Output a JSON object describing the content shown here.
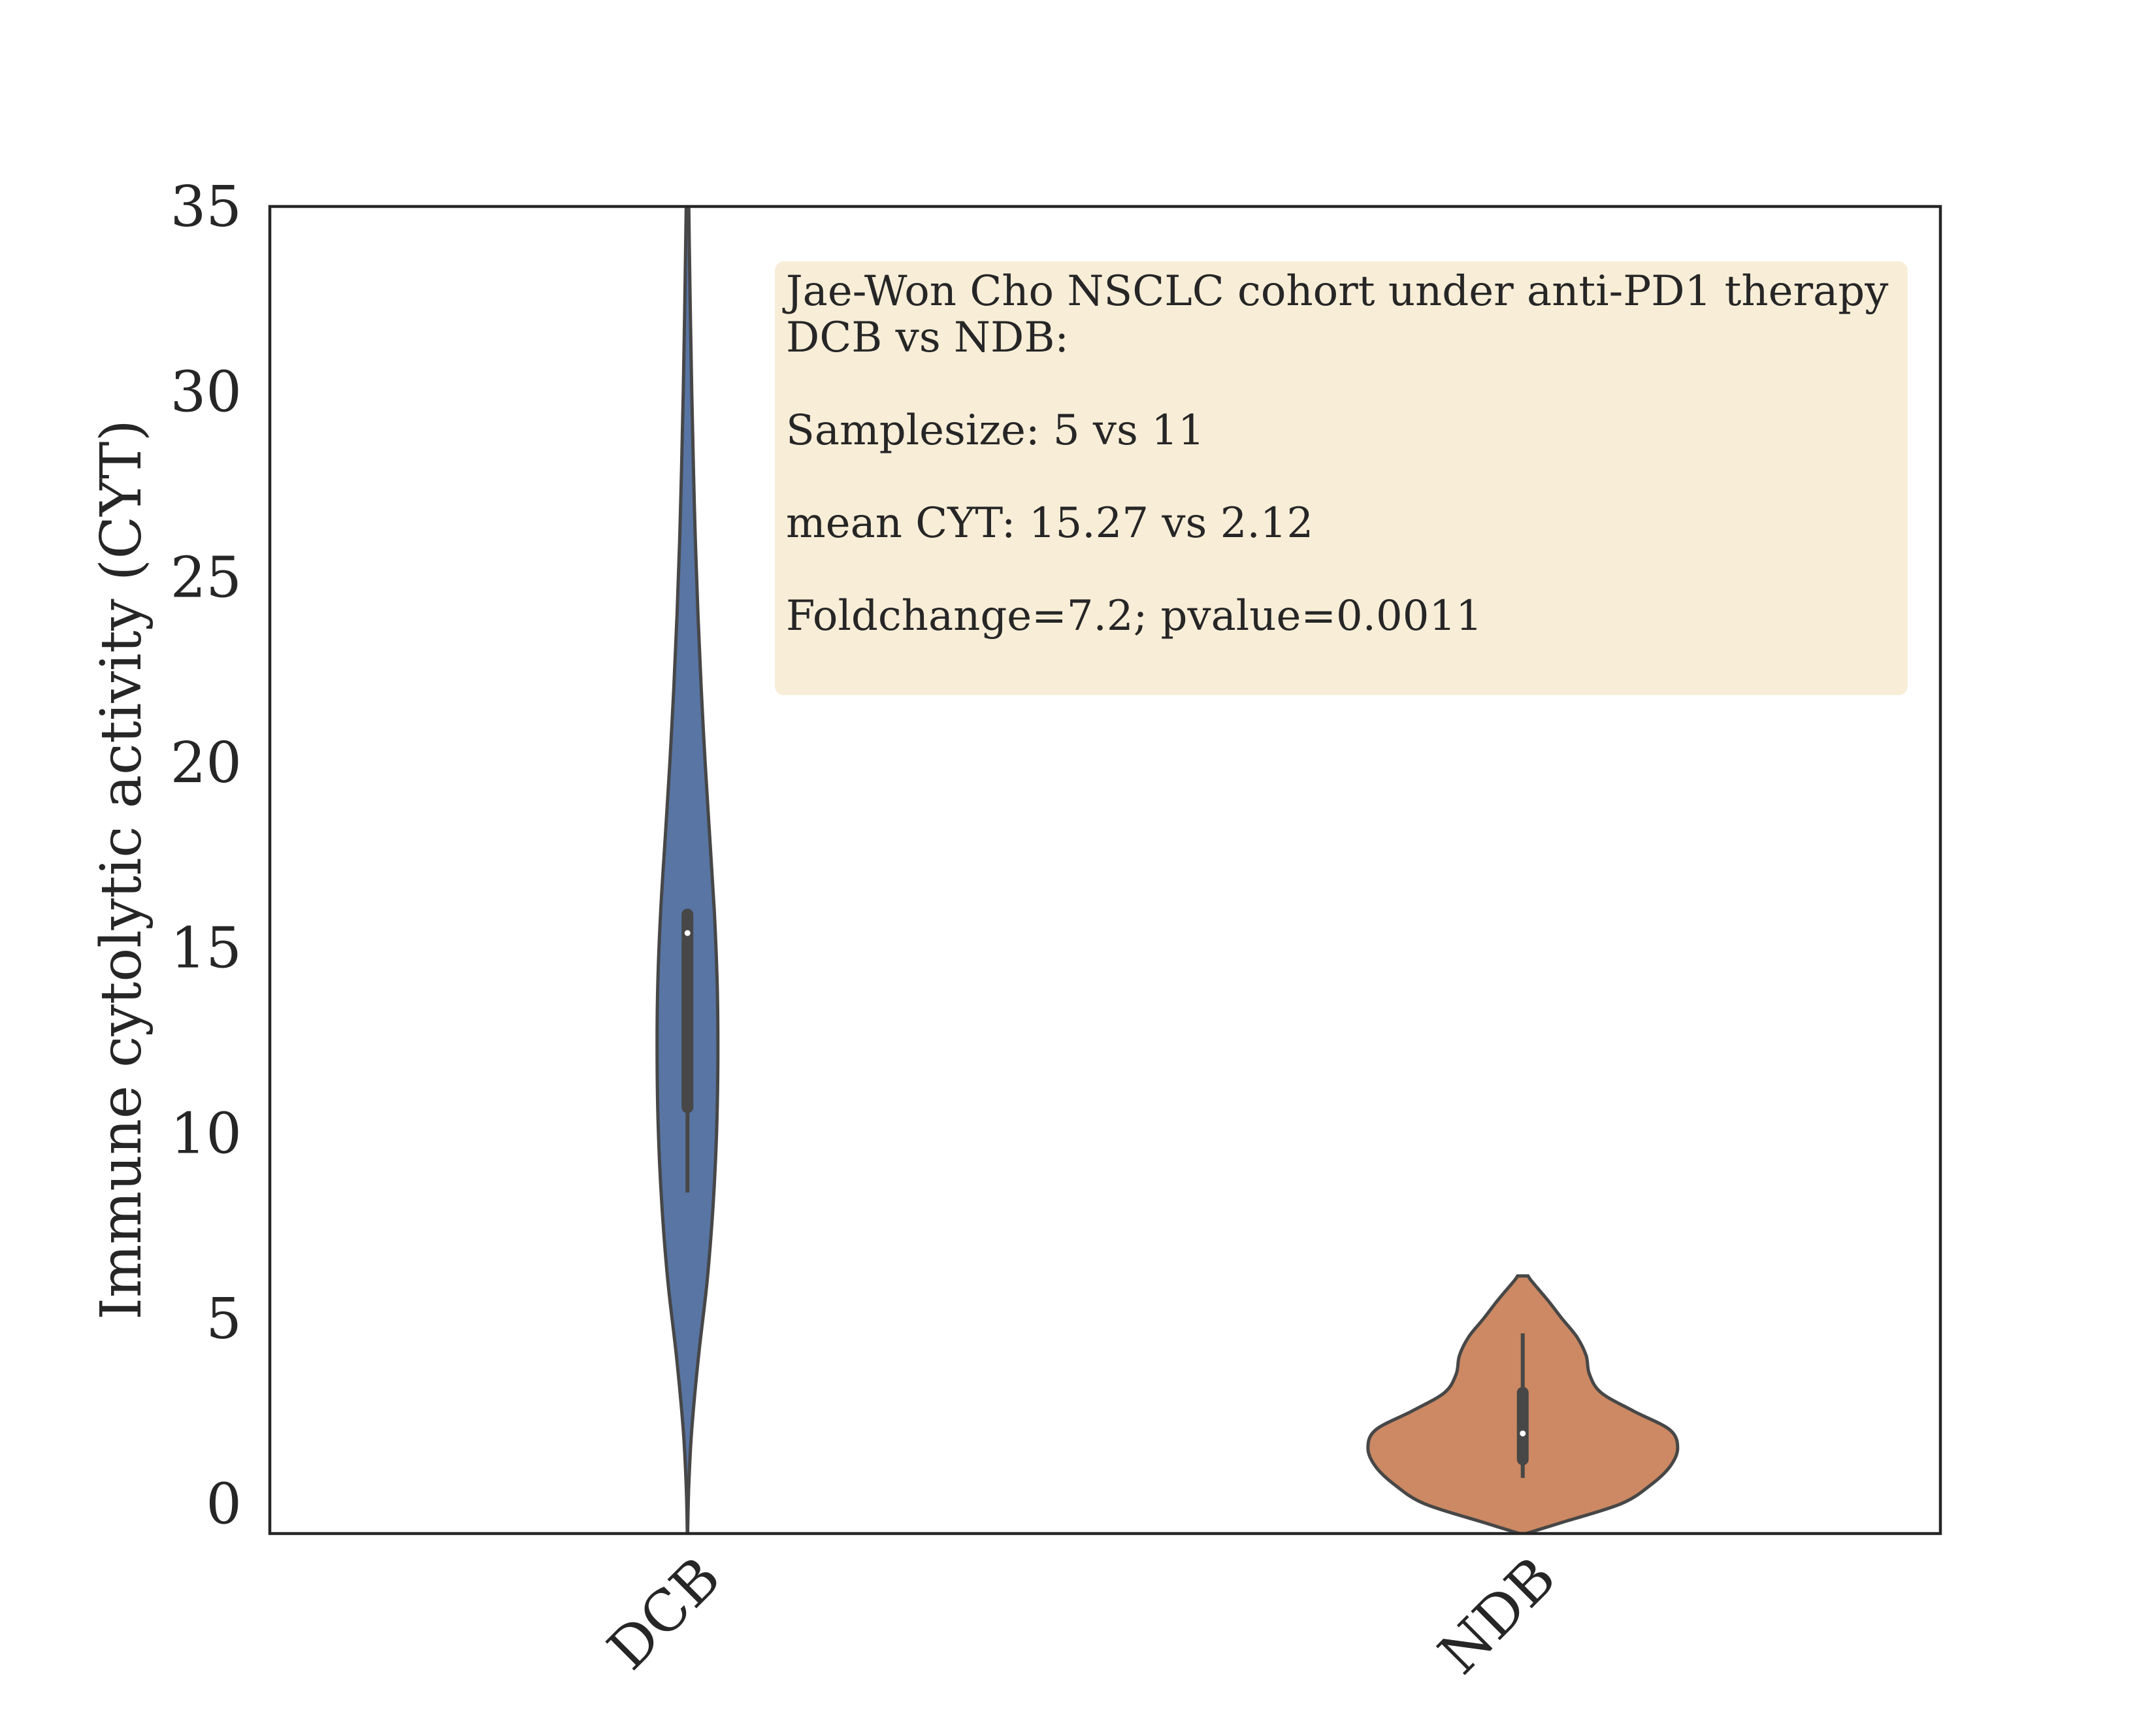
{
  "chart_data": {
    "type": "violin",
    "ylabel": "Immune cytolytic activity (CYT)",
    "xlabel": "",
    "ylim": [
      -0.8,
      35
    ],
    "yticks": [
      0,
      5,
      10,
      15,
      20,
      25,
      30,
      35
    ],
    "categories": [
      "DCB",
      "NDB"
    ],
    "grid": false,
    "series": [
      {
        "category": "DCB",
        "color": "#5875a4",
        "median": 15.4,
        "q1": 10.7,
        "q3": 15.9,
        "whisker_low": 8.4,
        "whisker_high": 15.9,
        "density": [
          [
            -0.8,
            0.2
          ],
          [
            0.5,
            2.0
          ],
          [
            2.0,
            6.5
          ],
          [
            4.0,
            17.0
          ],
          [
            6.0,
            30.0
          ],
          [
            8.0,
            39.0
          ],
          [
            10.0,
            44.5
          ],
          [
            12.0,
            46.5
          ],
          [
            14.0,
            45.5
          ],
          [
            16.0,
            41.0
          ],
          [
            18.0,
            34.0
          ],
          [
            20.0,
            27.0
          ],
          [
            22.0,
            21.0
          ],
          [
            24.0,
            16.0
          ],
          [
            26.0,
            12.0
          ],
          [
            28.0,
            9.0
          ],
          [
            30.0,
            6.5
          ],
          [
            32.0,
            4.5
          ],
          [
            34.0,
            2.8
          ],
          [
            35.0,
            2.0
          ]
        ]
      },
      {
        "category": "NDB",
        "color": "#cc8963",
        "median": 1.9,
        "q1": 1.2,
        "q3": 3.0,
        "whisker_low": 0.7,
        "whisker_high": 4.6,
        "density": [
          [
            -0.8,
            5.0
          ],
          [
            -0.5,
            60.0
          ],
          [
            0.0,
            150.0
          ],
          [
            0.5,
            195.0
          ],
          [
            1.0,
            225.0
          ],
          [
            1.5,
            237.0
          ],
          [
            2.0,
            225.0
          ],
          [
            2.5,
            170.0
          ],
          [
            3.0,
            120.0
          ],
          [
            3.5,
            102.0
          ],
          [
            4.0,
            97.0
          ],
          [
            4.5,
            83.0
          ],
          [
            5.0,
            60.0
          ],
          [
            5.5,
            38.0
          ],
          [
            6.0,
            14.0
          ],
          [
            6.15,
            8.0
          ]
        ]
      }
    ],
    "annotation": {
      "lines": [
        "Jae-Won Cho NSCLC cohort under anti-PD1 therapy",
        "DCB vs NDB:",
        "",
        "Samplesize: 5 vs 11",
        "",
        "mean CYT: 15.27 vs 2.12",
        "",
        "Foldchange=7.2; pvalue=0.0011"
      ],
      "background": "#f8eed8"
    }
  }
}
